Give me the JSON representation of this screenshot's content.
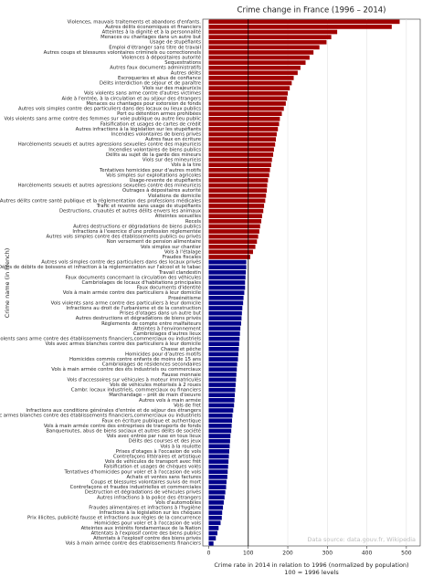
{
  "chart_data": {
    "type": "barh",
    "title": "Crime change in France (1996 – 2014)",
    "y_label": "Crime name (in French)",
    "x_label": [
      "Crime rate in 2014 in relation to 1996 (normalized by population)",
      "100 = 1996 levels"
    ],
    "source": "Data source: data.gouv.fr, Wikipedia",
    "xlim": [
      -15,
      535
    ],
    "xticks": [
      0,
      100,
      200,
      300,
      400,
      500
    ],
    "reference_line": 100,
    "colors": {
      "above": "#a00000",
      "below": "#00008b"
    },
    "grid": true,
    "categories": [
      "Violences, mauvais traitements et abandons d'enfants.",
      "Autres délits économiques et financiers",
      "Atteintes à la dignité et à la personnalité",
      "Menaces ou chantages dans un autre but",
      "Usage de stupéfiants",
      "Emploi d'étranger sans titre de travail",
      "Autres coups et blessures volontaires criminels ou correctionnels",
      "Violences à dépositaires autorité",
      "Sequestrations",
      "Autres faux documents administratifs",
      "Autres délits",
      "Escroqueries et abus de confiance",
      "Délits interdiction de séjour et de paraître",
      "Viols sur des majeur(e)s",
      "Vols violents sans arme contre d'autres victimes",
      "Aide à l'entrée, à la circulation et au séjour des étrangers",
      "Menaces ou chantages pour extorsion de fonds",
      "Autres vols simples contre des particuliers dans des locaux ou lieux publics",
      "Port ou détention armes prohibées",
      "Vols violents sans arme contre des femmes sur voie publique ou autre lieu public",
      "Falsification et usages de cartes de crédit",
      "Autres infractions à la législation sur les stupéfiants",
      "Incendies volontaires de biens privés",
      "Autres faux en écriture",
      "Harcèlements sexuels et autres agressions sexuelles contre des majeur(e)s",
      "Incendies volontaires de biens publics",
      "Délits au sujet de la garde des mineurs",
      "Viols sur des mineur(e)s",
      "Vols à la tire",
      "Tentatives homicides pour d'autres motifs",
      "Vols simples sur exploitations agricoles",
      "Usage-revente de stupéfiants",
      "Harcèlements sexuels et autres agressions sexuelles contre des mineur(e)s",
      "Outrages à dépositaires autorité",
      "Violations de domicile",
      "Autres délits contre santé publique et la réglementation des professions médicales",
      "Trafic et revente sans usage de stupéfiants",
      "Destructions, cruautés et autres délits envers les animaux",
      "Atteintes sexuelles",
      "Recels",
      "Autres destructions er dégradations de biens publics",
      "Infractions à l'exercice d'une profession réglementée",
      "Autres vols simples contre des établissements publics ou privés",
      "Non versement de pension alimentaire",
      "Vols simples sur chantier",
      "Vols à l'étalage",
      "Fraudes fiscales",
      "Autres vols simples contre des particuliers dans des locaux privés",
      "Délits de débits de boissons et infraction à la réglementation sur l'alcool et le tabac",
      "Travail clandestin",
      "Faux documents concernant la circulation des véhicules",
      "Cambriolages de locaux d'habitations principales",
      "Faux documents d'identité",
      "Vols à main armée contre des particuliers à leur domicile",
      "Proxénétisme",
      "Vols violents sans arme contre des particuliers à leur domicile",
      "Infractions au droit de l'urbanisme et de la construction",
      "Prises d'otages dans un autre but",
      "Autres destructions et dégradations de biens privés",
      "Règlements de compte entre malfaiteurs",
      "Atteintes à l'environnement",
      "Cambriolages d'autres lieux",
      "Vols violents sans arme contre des établissements financiers,commerciaux ou industriels",
      "Vols avec armes blanches contre des particuliers à leur domicile",
      "Chasse et pêche",
      "Homicides pour d'autres motifs",
      "Homicides commis contre enfants de moins de 15 ans",
      "Cambriolages de résidences secondaires",
      "Vols à main armée contre des éts industriels ou commerciaux",
      "Fausse monnaie",
      "Vols d'accessoires sur véhicules à moteur immatriculés",
      "Vols de véhicules motorisés à 2 roues",
      "Cambr. locaux industriels, commerciaux ou financiers",
      "Marchandage – prêt de main d'oeuvre",
      "Autres vols à main armée",
      "Vols de fret",
      "Infractions aux conditions générales d'entrée et de séjour des étrangers",
      "Vols avec armes blanches contre des établissements financiers,commerciaux ou industriels",
      "Faux en écriture publique et authentique",
      "Vols à main armée contre des entreprises de transports de fonds",
      "Banqueroutes, abus de biens sociaux et autres délits de société",
      "Vols avec entrée par ruse en tous lieux",
      "Délits des courses et des jeux",
      "Vols à la roulotte",
      "Prises d'otages à l'occasion de vols",
      "Contrefaçons littéraires et artistique",
      "Vols de véhicules de transport avec frêt",
      "Falsification et usages de chèques volés",
      "Tentatives d'homicides pour voler et à l'occasion de vols",
      "Achats et ventes sans factures",
      "Coups et blessures volontaires suivis de mort",
      "Contrefaçons et fraudes industrielles et commerciales",
      "Destruction et dégradations de véhicules privés",
      "Autres infractions à la police des étrangers",
      "Vols d'automobiles",
      "Fraudes alimentaires et infractions à l'hygiène",
      "Infractions à la législation sur les chèques",
      "Prix illicites, publicité fausse et infractions aux règles de la concurrence",
      "Homicides pour voler et à l'occasion de vols",
      "Atteintes aux intérêts fondamentaux de la Nation",
      "Attentats à l'explosif contre des biens publics",
      "Attentats à l'explosif contre des biens privés",
      "Vols à main armée contre des établissements financiers"
    ],
    "values": [
      483,
      463,
      325,
      310,
      298,
      280,
      265,
      255,
      245,
      232,
      225,
      215,
      210,
      205,
      200,
      198,
      195,
      190,
      185,
      180,
      178,
      175,
      172,
      170,
      168,
      165,
      163,
      160,
      158,
      155,
      153,
      150,
      148,
      147,
      145,
      143,
      140,
      138,
      135,
      133,
      130,
      128,
      125,
      122,
      118,
      112,
      105,
      95,
      95,
      94,
      93,
      92,
      92,
      90,
      88,
      87,
      85,
      84,
      83,
      82,
      80,
      79,
      78,
      77,
      76,
      75,
      74,
      72,
      71,
      70,
      69,
      68,
      67,
      66,
      65,
      64,
      62,
      60,
      59,
      58,
      57,
      55,
      54,
      53,
      52,
      51,
      50,
      49,
      48,
      47,
      45,
      44,
      42,
      40,
      38,
      36,
      34,
      33,
      30,
      25,
      22,
      18,
      12
    ]
  }
}
